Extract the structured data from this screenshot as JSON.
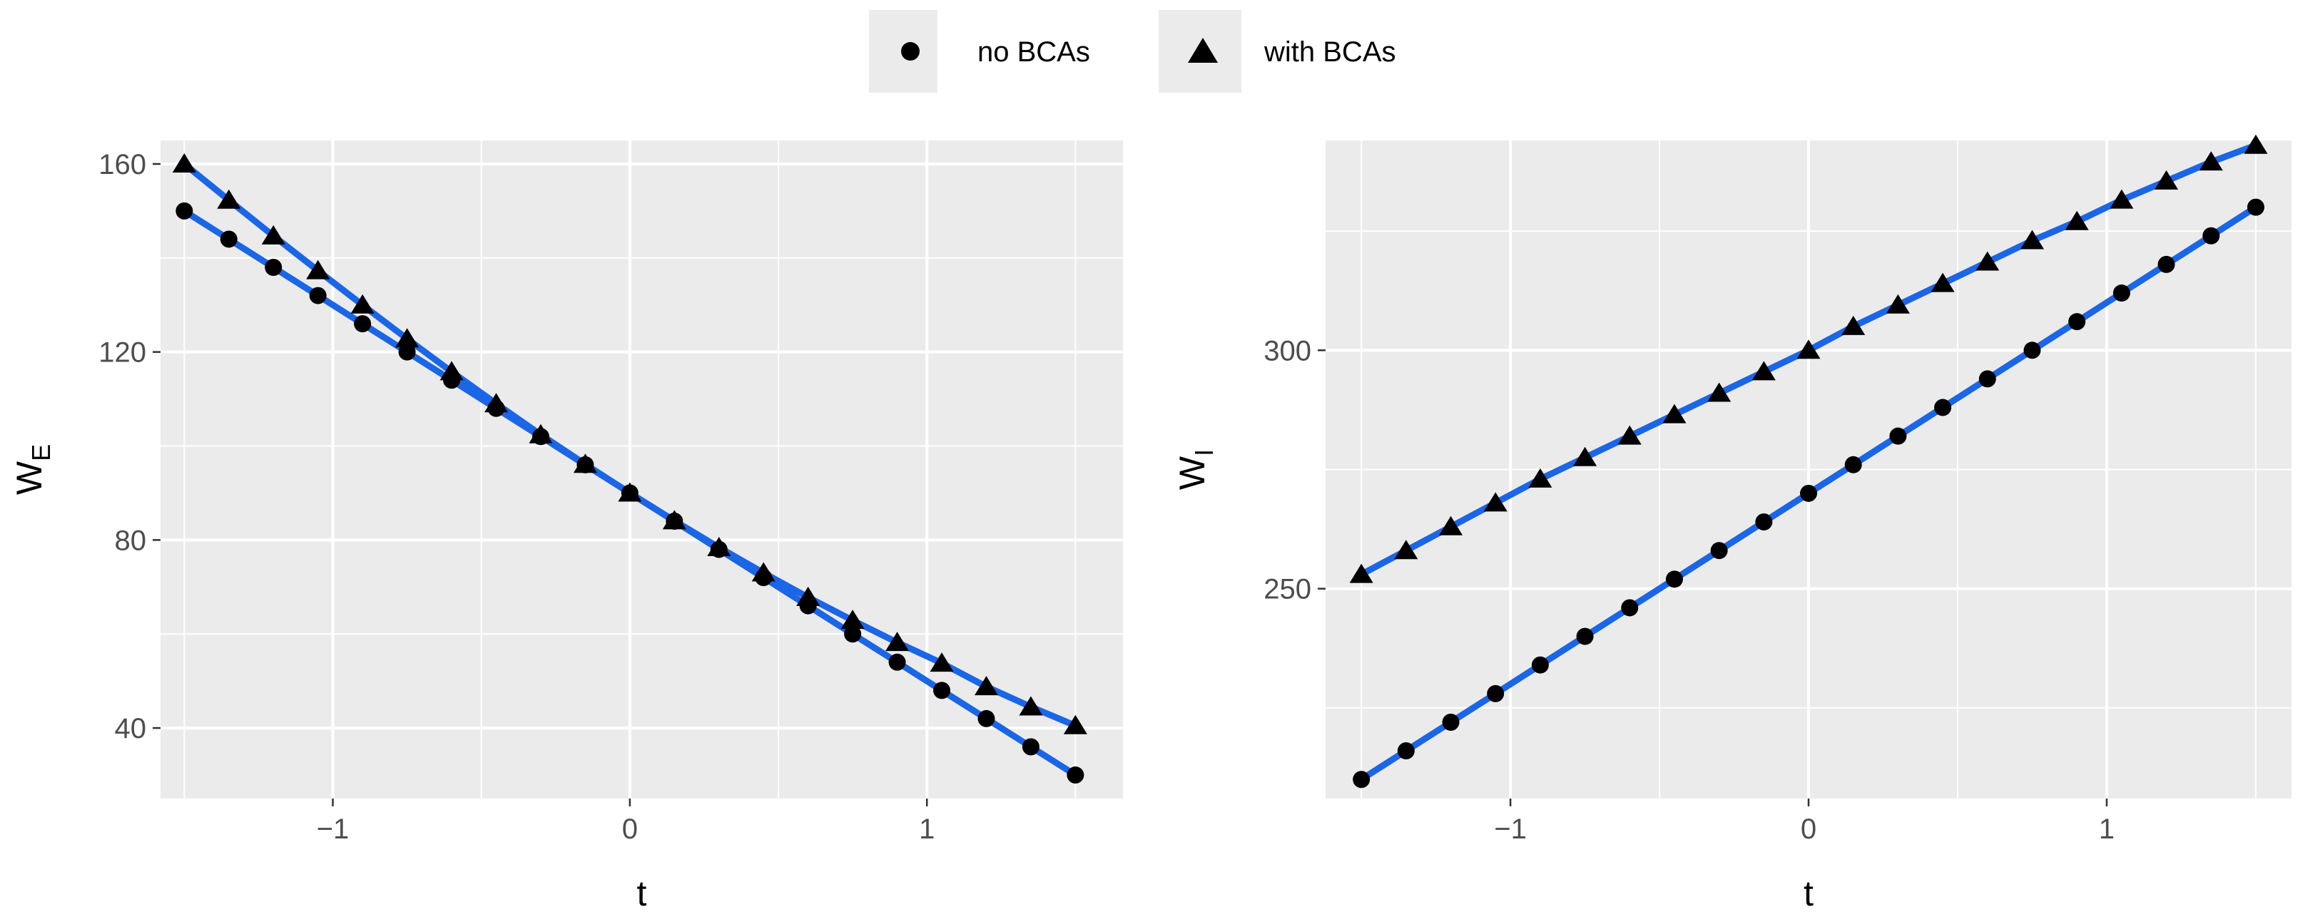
{
  "legend": {
    "items": [
      {
        "label": "no BCAs",
        "shape": "circle"
      },
      {
        "label": "with BCAs",
        "shape": "triangle"
      }
    ]
  },
  "colors": {
    "panel_background": "#ebebeb",
    "grid": "#ffffff",
    "fit_line": "#1a66e6",
    "points": "#000000"
  },
  "chart_data": [
    {
      "type": "line",
      "xlabel": "t",
      "ylabel": "W",
      "ylabel_subscript": "E",
      "xlim": [
        -1.58,
        1.66
      ],
      "ylim": [
        25,
        165
      ],
      "x_ticks": [
        -1,
        0,
        1
      ],
      "x_tick_labels": [
        "−1",
        "0",
        "1"
      ],
      "y_ticks": [
        40,
        80,
        120,
        160
      ],
      "y_tick_labels": [
        "40",
        "80",
        "120",
        "160"
      ],
      "grid": true,
      "x": [
        -1.5,
        -1.35,
        -1.2,
        -1.05,
        -0.9,
        -0.75,
        -0.6,
        -0.45,
        -0.3,
        -0.15,
        0,
        0.15,
        0.3,
        0.45,
        0.6,
        0.75,
        0.9,
        1.05,
        1.2,
        1.35,
        1.5
      ],
      "series": [
        {
          "legend": "no BCAs",
          "marker": "circle",
          "values": [
            150,
            144,
            138,
            132,
            126,
            120,
            114,
            108,
            102,
            96,
            90,
            84,
            78,
            72,
            66,
            60,
            54,
            48,
            42,
            36,
            30
          ]
        },
        {
          "legend": "with BCAs",
          "marker": "triangle",
          "values": [
            160,
            152.3,
            144.7,
            137.3,
            130,
            122.8,
            115.8,
            109,
            102.4,
            96.1,
            90,
            84.1,
            78.4,
            73,
            67.8,
            62.9,
            58.2,
            53.8,
            48.8,
            44.5,
            40.5
          ]
        }
      ]
    },
    {
      "type": "line",
      "xlabel": "t",
      "ylabel": "W",
      "ylabel_subscript": "I",
      "xlim": [
        -1.62,
        1.62
      ],
      "ylim": [
        206,
        344
      ],
      "x_ticks": [
        -1,
        0,
        1
      ],
      "x_tick_labels": [
        "−1",
        "0",
        "1"
      ],
      "y_ticks": [
        250,
        300
      ],
      "y_tick_labels": [
        "250",
        "300"
      ],
      "grid": true,
      "x": [
        -1.5,
        -1.35,
        -1.2,
        -1.05,
        -0.9,
        -0.75,
        -0.6,
        -0.45,
        -0.3,
        -0.15,
        0,
        0.15,
        0.3,
        0.45,
        0.6,
        0.75,
        0.9,
        1.05,
        1.2,
        1.35,
        1.5
      ],
      "series": [
        {
          "legend": "no BCAs",
          "marker": "circle",
          "values": [
            210,
            216,
            222,
            228,
            234,
            240,
            246,
            252,
            258,
            264,
            270,
            276,
            282,
            288,
            294,
            300,
            306,
            312,
            318,
            324,
            330
          ]
        },
        {
          "legend": "with BCAs",
          "marker": "triangle",
          "values": [
            253,
            258,
            263,
            268,
            273,
            277.5,
            282,
            286.5,
            291,
            295.5,
            300,
            305,
            309.5,
            314,
            318.5,
            323,
            327,
            331.5,
            335.5,
            339.5,
            343
          ]
        }
      ]
    }
  ]
}
